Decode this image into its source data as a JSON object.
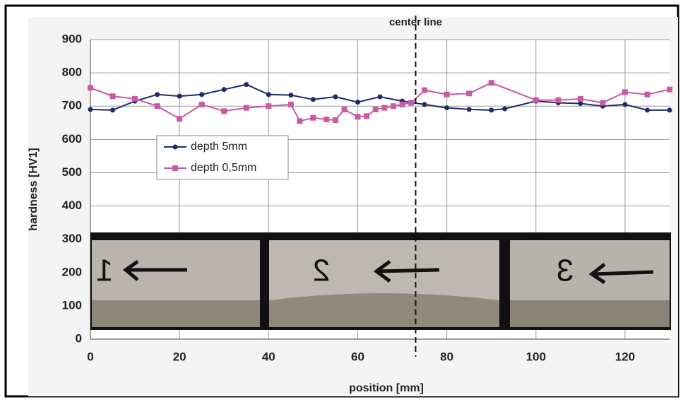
{
  "chart_data": {
    "type": "line",
    "xlabel": "position [mm]",
    "ylabel": "hardness [HV1]",
    "xlim": [
      0,
      130
    ],
    "xticks": [
      0,
      20,
      40,
      60,
      80,
      100,
      120
    ],
    "ylim": [
      0,
      900
    ],
    "yticks": [
      0,
      100,
      200,
      300,
      400,
      500,
      600,
      700,
      800,
      900
    ],
    "grid": true,
    "center_line": {
      "label": "center line",
      "x": 73
    },
    "photo_labels": [
      "1",
      "2",
      "3"
    ],
    "series": [
      {
        "name": "depth 5mm",
        "color": "#1f2a6b",
        "x": [
          0,
          5,
          10,
          15,
          20,
          25,
          30,
          35,
          40,
          45,
          50,
          55,
          60,
          65,
          70,
          75,
          80,
          85,
          90,
          93,
          100,
          105,
          110,
          115,
          120,
          125,
          130
        ],
        "values": [
          690,
          688,
          715,
          735,
          730,
          735,
          750,
          765,
          735,
          733,
          720,
          728,
          712,
          728,
          715,
          705,
          695,
          690,
          688,
          692,
          715,
          710,
          708,
          700,
          705,
          688,
          688
        ]
      },
      {
        "name": "depth 0,5mm",
        "color": "#c85aa3",
        "x": [
          0,
          5,
          10,
          15,
          20,
          25,
          30,
          35,
          40,
          45,
          47,
          50,
          53,
          55,
          57,
          60,
          62,
          64,
          66,
          68,
          70,
          72,
          75,
          80,
          85,
          90,
          100,
          105,
          110,
          115,
          120,
          125,
          130
        ],
        "values": [
          755,
          730,
          722,
          700,
          662,
          705,
          685,
          695,
          700,
          705,
          655,
          665,
          660,
          658,
          690,
          668,
          670,
          690,
          695,
          700,
          705,
          710,
          748,
          735,
          738,
          770,
          718,
          718,
          722,
          710,
          742,
          735,
          750
        ]
      }
    ]
  }
}
